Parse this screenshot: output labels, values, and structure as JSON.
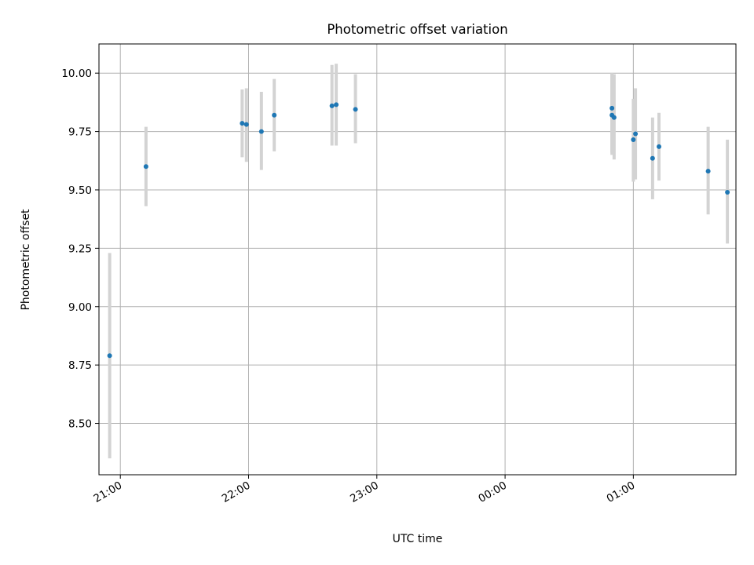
{
  "chart_data": {
    "type": "scatter",
    "title": "Photometric offset variation",
    "xlabel": "UTC time",
    "ylabel": "Photometric offset",
    "grid": true,
    "legend": "none",
    "x_axis_kind": "time",
    "xlim": [
      "20:50",
      "01:48 (+1 day)"
    ],
    "ylim": [
      8.28,
      10.125
    ],
    "xtick_labels": [
      "21:00",
      "22:00",
      "23:00",
      "00:00",
      "01:00"
    ],
    "ytick_labels": [
      "8.50",
      "8.75",
      "9.00",
      "9.25",
      "9.50",
      "9.75",
      "10.00"
    ],
    "series": [
      {
        "marker_color": "#1f77b4",
        "errorbar_color": "#d3d3d3",
        "points": [
          {
            "time": "20:55",
            "y": 8.79,
            "ylo": 8.35,
            "yhi": 9.23
          },
          {
            "time": "21:12",
            "y": 9.6,
            "ylo": 9.43,
            "yhi": 9.77
          },
          {
            "time": "21:57",
            "y": 9.785,
            "ylo": 9.64,
            "yhi": 9.93
          },
          {
            "time": "21:59",
            "y": 9.78,
            "ylo": 9.62,
            "yhi": 9.935
          },
          {
            "time": "22:06",
            "y": 9.75,
            "ylo": 9.585,
            "yhi": 9.92
          },
          {
            "time": "22:12",
            "y": 9.82,
            "ylo": 9.665,
            "yhi": 9.975
          },
          {
            "time": "22:39",
            "y": 9.86,
            "ylo": 9.69,
            "yhi": 10.035
          },
          {
            "time": "22:41",
            "y": 9.865,
            "ylo": 9.69,
            "yhi": 10.04
          },
          {
            "time": "22:50",
            "y": 9.845,
            "ylo": 9.7,
            "yhi": 9.995
          },
          {
            "time": "00:50",
            "y": 9.85,
            "ylo": 9.66,
            "yhi": 10.0
          },
          {
            "time": "00:50",
            "y": 9.82,
            "ylo": 9.65,
            "yhi": 10.0
          },
          {
            "time": "00:51",
            "y": 9.81,
            "ylo": 9.63,
            "yhi": 9.995
          },
          {
            "time": "01:00",
            "y": 9.715,
            "ylo": 9.535,
            "yhi": 9.89
          },
          {
            "time": "01:01",
            "y": 9.74,
            "ylo": 9.545,
            "yhi": 9.935
          },
          {
            "time": "01:09",
            "y": 9.635,
            "ylo": 9.46,
            "yhi": 9.81
          },
          {
            "time": "01:12",
            "y": 9.685,
            "ylo": 9.54,
            "yhi": 9.83
          },
          {
            "time": "01:35",
            "y": 9.58,
            "ylo": 9.395,
            "yhi": 9.77
          },
          {
            "time": "01:44",
            "y": 9.49,
            "ylo": 9.27,
            "yhi": 9.715
          }
        ]
      }
    ]
  }
}
